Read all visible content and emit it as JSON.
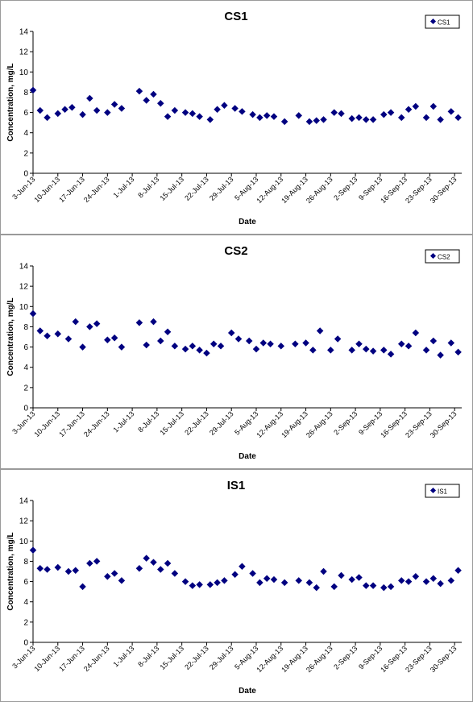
{
  "chart_data": [
    {
      "type": "scatter",
      "title": "CS1",
      "xlabel": "Date",
      "ylabel": "Concentration, mg/L",
      "ylim": [
        0,
        14
      ],
      "yticks": [
        0,
        2,
        4,
        6,
        8,
        10,
        12,
        14
      ],
      "xlim": [
        "2013-06-03",
        "2013-10-02"
      ],
      "xtick_labels": [
        "3-Jun-13",
        "10-Jun-13",
        "17-Jun-13",
        "24-Jun-13",
        "1-Jul-13",
        "8-Jul-13",
        "15-Jul-13",
        "22-Jul-13",
        "29-Jul-13",
        "5-Aug-13",
        "12-Aug-13",
        "19-Aug-13",
        "26-Aug-13",
        "2-Sep-13",
        "9-Sep-13",
        "16-Sep-13",
        "23-Sep-13",
        "30-Sep-13"
      ],
      "grid": false,
      "legend": "top-right",
      "series": [
        {
          "name": "CS1",
          "color": "#000080",
          "x": [
            "2013-06-03",
            "2013-06-05",
            "2013-06-07",
            "2013-06-10",
            "2013-06-12",
            "2013-06-14",
            "2013-06-17",
            "2013-06-19",
            "2013-06-21",
            "2013-06-24",
            "2013-06-26",
            "2013-06-28",
            "2013-07-03",
            "2013-07-05",
            "2013-07-07",
            "2013-07-09",
            "2013-07-11",
            "2013-07-13",
            "2013-07-16",
            "2013-07-18",
            "2013-07-20",
            "2013-07-23",
            "2013-07-25",
            "2013-07-27",
            "2013-07-30",
            "2013-08-01",
            "2013-08-04",
            "2013-08-06",
            "2013-08-08",
            "2013-08-10",
            "2013-08-13",
            "2013-08-17",
            "2013-08-20",
            "2013-08-22",
            "2013-08-24",
            "2013-08-27",
            "2013-08-29",
            "2013-09-01",
            "2013-09-03",
            "2013-09-05",
            "2013-09-07",
            "2013-09-10",
            "2013-09-12",
            "2013-09-15",
            "2013-09-17",
            "2013-09-19",
            "2013-09-22",
            "2013-09-24",
            "2013-09-26",
            "2013-09-29",
            "2013-10-01"
          ],
          "y": [
            8.2,
            6.2,
            5.5,
            5.9,
            6.3,
            6.5,
            5.8,
            7.4,
            6.2,
            6.0,
            6.8,
            6.4,
            8.1,
            7.2,
            7.8,
            6.9,
            5.6,
            6.2,
            6.0,
            5.9,
            5.6,
            5.3,
            6.3,
            6.7,
            6.4,
            6.1,
            5.8,
            5.5,
            5.7,
            5.6,
            5.1,
            5.7,
            5.1,
            5.2,
            5.3,
            6.0,
            5.9,
            5.4,
            5.5,
            5.3,
            5.3,
            5.8,
            6.0,
            5.5,
            6.3,
            6.6,
            5.5,
            6.6,
            5.3,
            6.1,
            5.5
          ]
        }
      ]
    },
    {
      "type": "scatter",
      "title": "CS2",
      "xlabel": "Date",
      "ylabel": "Concentration, mg/L",
      "ylim": [
        0,
        14
      ],
      "yticks": [
        0,
        2,
        4,
        6,
        8,
        10,
        12,
        14
      ],
      "xlim": [
        "2013-06-03",
        "2013-10-02"
      ],
      "xtick_labels": [
        "3-Jun-13",
        "10-Jun-13",
        "17-Jun-13",
        "24-Jun-13",
        "1-Jul-13",
        "8-Jul-13",
        "15-Jul-13",
        "22-Jul-13",
        "29-Jul-13",
        "5-Aug-13",
        "12-Aug-13",
        "19-Aug-13",
        "26-Aug-13",
        "2-Sep-13",
        "9-Sep-13",
        "16-Sep-13",
        "23-Sep-13",
        "30-Sep-13"
      ],
      "grid": false,
      "legend": "top-right",
      "series": [
        {
          "name": "CS2",
          "color": "#000080",
          "x": [
            "2013-06-03",
            "2013-06-05",
            "2013-06-07",
            "2013-06-10",
            "2013-06-13",
            "2013-06-15",
            "2013-06-17",
            "2013-06-19",
            "2013-06-21",
            "2013-06-24",
            "2013-06-26",
            "2013-06-28",
            "2013-07-03",
            "2013-07-05",
            "2013-07-07",
            "2013-07-09",
            "2013-07-11",
            "2013-07-13",
            "2013-07-16",
            "2013-07-18",
            "2013-07-20",
            "2013-07-22",
            "2013-07-24",
            "2013-07-26",
            "2013-07-29",
            "2013-07-31",
            "2013-08-03",
            "2013-08-05",
            "2013-08-07",
            "2013-08-09",
            "2013-08-12",
            "2013-08-16",
            "2013-08-19",
            "2013-08-21",
            "2013-08-23",
            "2013-08-26",
            "2013-08-28",
            "2013-09-01",
            "2013-09-03",
            "2013-09-05",
            "2013-09-07",
            "2013-09-10",
            "2013-09-12",
            "2013-09-15",
            "2013-09-17",
            "2013-09-19",
            "2013-09-22",
            "2013-09-24",
            "2013-09-26",
            "2013-09-29",
            "2013-10-01"
          ],
          "y": [
            9.3,
            7.6,
            7.1,
            7.3,
            6.8,
            8.5,
            6.0,
            8.0,
            8.3,
            6.7,
            6.9,
            6.0,
            8.4,
            6.2,
            8.5,
            6.6,
            7.5,
            6.1,
            5.8,
            6.1,
            5.7,
            5.4,
            6.3,
            6.1,
            7.4,
            6.8,
            6.6,
            5.8,
            6.4,
            6.3,
            6.1,
            6.3,
            6.4,
            5.7,
            7.6,
            5.7,
            6.8,
            5.7,
            6.3,
            5.8,
            5.6,
            5.7,
            5.3,
            6.3,
            6.1,
            7.4,
            5.7,
            6.6,
            5.2,
            6.4,
            5.5
          ]
        }
      ]
    },
    {
      "type": "scatter",
      "title": "IS1",
      "xlabel": "Date",
      "ylabel": "Concentration, mg/L",
      "ylim": [
        0,
        14
      ],
      "yticks": [
        0,
        2,
        4,
        6,
        8,
        10,
        12,
        14
      ],
      "xlim": [
        "2013-06-03",
        "2013-10-02"
      ],
      "xtick_labels": [
        "3-Jun-13",
        "10-Jun-13",
        "17-Jun-13",
        "24-Jun-13",
        "1-Jul-13",
        "8-Jul-13",
        "15-Jul-13",
        "22-Jul-13",
        "29-Jul-13",
        "5-Aug-13",
        "12-Aug-13",
        "19-Aug-13",
        "26-Aug-13",
        "2-Sep-13",
        "9-Sep-13",
        "16-Sep-13",
        "23-Sep-13",
        "30-Sep-13"
      ],
      "grid": false,
      "legend": "top-right",
      "series": [
        {
          "name": "IS1",
          "color": "#000080",
          "x": [
            "2013-06-03",
            "2013-06-05",
            "2013-06-07",
            "2013-06-10",
            "2013-06-13",
            "2013-06-15",
            "2013-06-17",
            "2013-06-19",
            "2013-06-21",
            "2013-06-24",
            "2013-06-26",
            "2013-06-28",
            "2013-07-03",
            "2013-07-05",
            "2013-07-07",
            "2013-07-09",
            "2013-07-11",
            "2013-07-13",
            "2013-07-16",
            "2013-07-18",
            "2013-07-20",
            "2013-07-23",
            "2013-07-25",
            "2013-07-27",
            "2013-07-30",
            "2013-08-01",
            "2013-08-04",
            "2013-08-06",
            "2013-08-08",
            "2013-08-10",
            "2013-08-13",
            "2013-08-17",
            "2013-08-20",
            "2013-08-22",
            "2013-08-24",
            "2013-08-27",
            "2013-08-29",
            "2013-09-01",
            "2013-09-03",
            "2013-09-05",
            "2013-09-07",
            "2013-09-10",
            "2013-09-12",
            "2013-09-15",
            "2013-09-17",
            "2013-09-19",
            "2013-09-22",
            "2013-09-24",
            "2013-09-26",
            "2013-09-29",
            "2013-10-01"
          ],
          "y": [
            9.1,
            7.3,
            7.2,
            7.4,
            7.0,
            7.1,
            5.5,
            7.8,
            8.0,
            6.5,
            6.8,
            6.1,
            7.3,
            8.3,
            7.9,
            7.2,
            7.8,
            6.8,
            6.0,
            5.6,
            5.7,
            5.7,
            5.9,
            6.1,
            6.7,
            7.5,
            6.8,
            5.9,
            6.3,
            6.2,
            5.9,
            6.1,
            5.9,
            5.4,
            7.0,
            5.5,
            6.6,
            6.2,
            6.4,
            5.6,
            5.6,
            5.4,
            5.5,
            6.1,
            6.0,
            6.5,
            6.0,
            6.3,
            5.8,
            6.1,
            7.1
          ]
        }
      ]
    }
  ]
}
